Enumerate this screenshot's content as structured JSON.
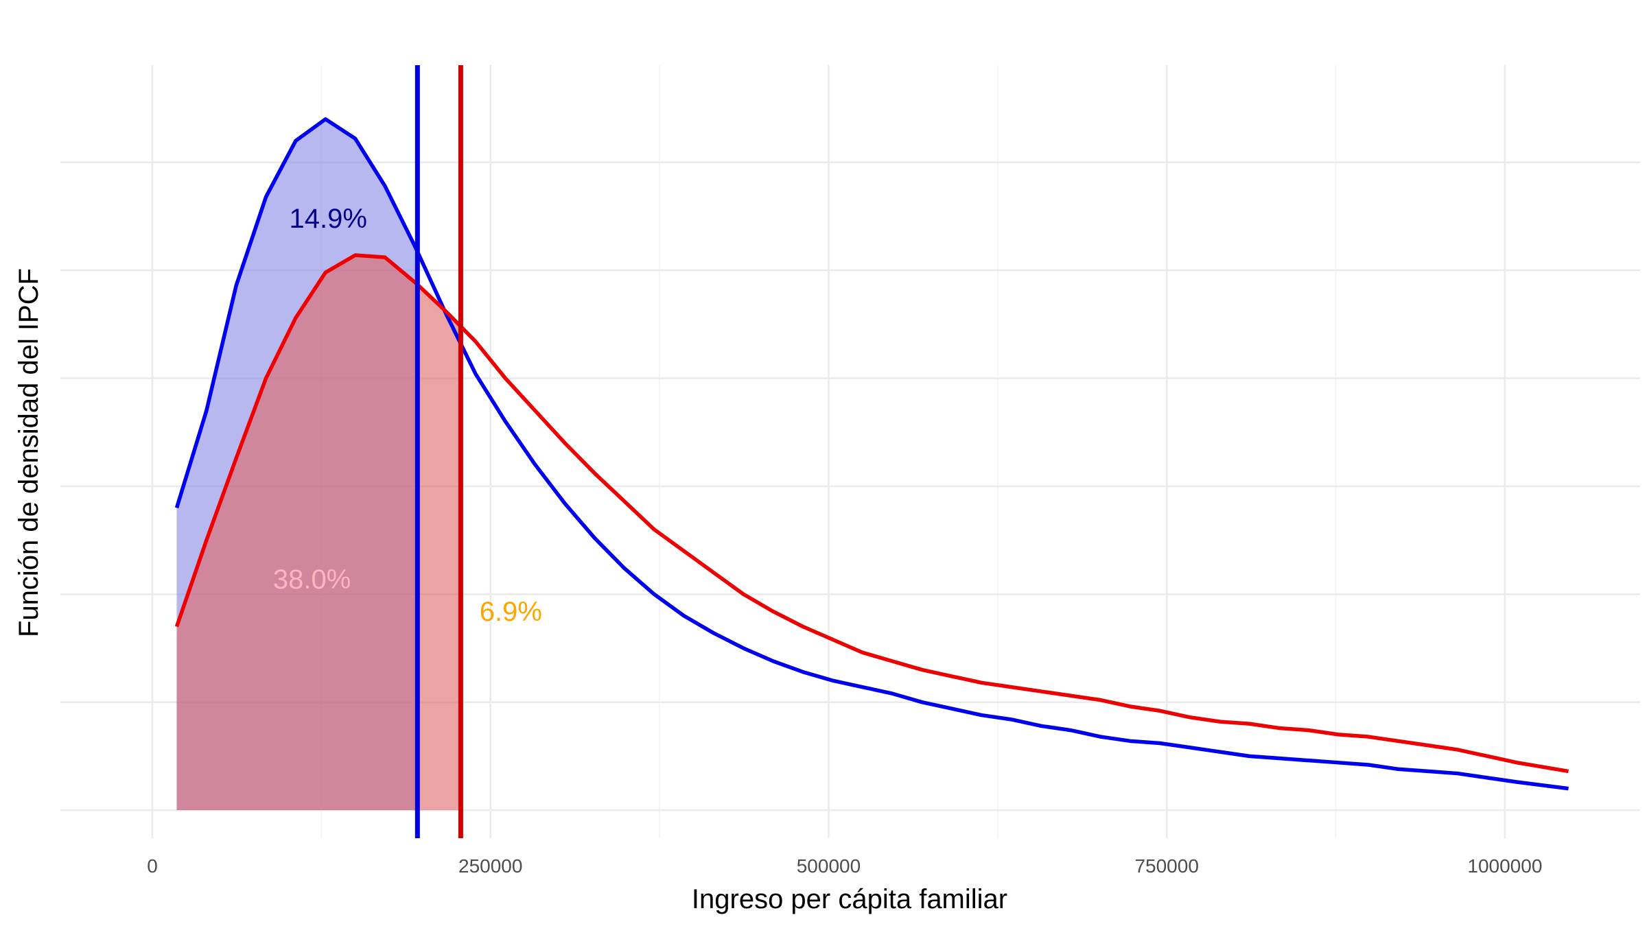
{
  "chart_data": {
    "type": "area",
    "xlabel": "Ingreso per cápita familiar",
    "ylabel": "Función de densidad del IPCF",
    "xlim": [
      -68000,
      1100000
    ],
    "ylim": [
      -0.13,
      3.45
    ],
    "x_ticks": [
      0,
      250000,
      500000,
      750000,
      1000000
    ],
    "x_tick_labels": [
      "0",
      "250000",
      "500000",
      "750000",
      "1000000"
    ],
    "y_ticks": [
      0,
      0.5,
      1,
      1.5,
      2,
      2.5,
      3
    ],
    "y_tick_labels": [],
    "grid": true,
    "legend": "none",
    "series": [
      {
        "color": "#0000ee",
        "fill": "#8888e8",
        "x": [
          18000,
          40000,
          62000,
          84000,
          106000,
          128000,
          150000,
          172000,
          195000,
          217000,
          239000,
          261000,
          283000,
          305000,
          327000,
          349000,
          371000,
          393000,
          415000,
          437000,
          459000,
          481000,
          503000,
          525000,
          547000,
          569000,
          591000,
          613000,
          635000,
          657000,
          679000,
          701000,
          723000,
          745000,
          767000,
          789000,
          811000,
          833000,
          855000,
          877000,
          899000,
          921000,
          943000,
          965000,
          987000,
          1009000,
          1047000
        ],
        "y": [
          1.4,
          1.85,
          2.43,
          2.84,
          3.1,
          3.2,
          3.11,
          2.89,
          2.6,
          2.3,
          2.02,
          1.8,
          1.6,
          1.42,
          1.26,
          1.12,
          1.0,
          0.9,
          0.82,
          0.75,
          0.69,
          0.64,
          0.6,
          0.57,
          0.54,
          0.5,
          0.47,
          0.44,
          0.42,
          0.39,
          0.37,
          0.34,
          0.32,
          0.31,
          0.29,
          0.27,
          0.25,
          0.24,
          0.23,
          0.22,
          0.21,
          0.19,
          0.18,
          0.17,
          0.15,
          0.13,
          0.1
        ]
      },
      {
        "color": "#ee0000",
        "fill": "#e06666",
        "x": [
          18000,
          40000,
          62000,
          84000,
          106000,
          128000,
          150000,
          172000,
          195000,
          217000,
          239000,
          261000,
          283000,
          305000,
          327000,
          349000,
          371000,
          393000,
          415000,
          437000,
          459000,
          481000,
          503000,
          525000,
          547000,
          569000,
          591000,
          613000,
          635000,
          657000,
          679000,
          701000,
          723000,
          745000,
          767000,
          789000,
          811000,
          833000,
          855000,
          877000,
          899000,
          921000,
          943000,
          965000,
          987000,
          1009000,
          1047000
        ],
        "y": [
          0.85,
          1.25,
          1.63,
          2.0,
          2.28,
          2.49,
          2.57,
          2.56,
          2.44,
          2.31,
          2.17,
          2.0,
          1.85,
          1.7,
          1.56,
          1.43,
          1.3,
          1.2,
          1.1,
          1.0,
          0.92,
          0.85,
          0.79,
          0.73,
          0.69,
          0.65,
          0.62,
          0.59,
          0.57,
          0.55,
          0.53,
          0.51,
          0.48,
          0.46,
          0.43,
          0.41,
          0.4,
          0.38,
          0.37,
          0.35,
          0.34,
          0.32,
          0.3,
          0.28,
          0.25,
          0.22,
          0.18
        ]
      }
    ],
    "vlines": [
      {
        "x": 196000,
        "color": "#0000dd"
      },
      {
        "x": 228000,
        "color": "#cc0000"
      }
    ],
    "annotations": [
      {
        "text": "14.9%",
        "x": 130000,
        "y": 2.73,
        "color": "#00008b"
      },
      {
        "text": "38.0%",
        "x": 118000,
        "y": 1.06,
        "color": "#ffb6c1"
      },
      {
        "text": "6.9%",
        "x": 265000,
        "y": 0.91,
        "color": "#ffa500"
      }
    ]
  }
}
